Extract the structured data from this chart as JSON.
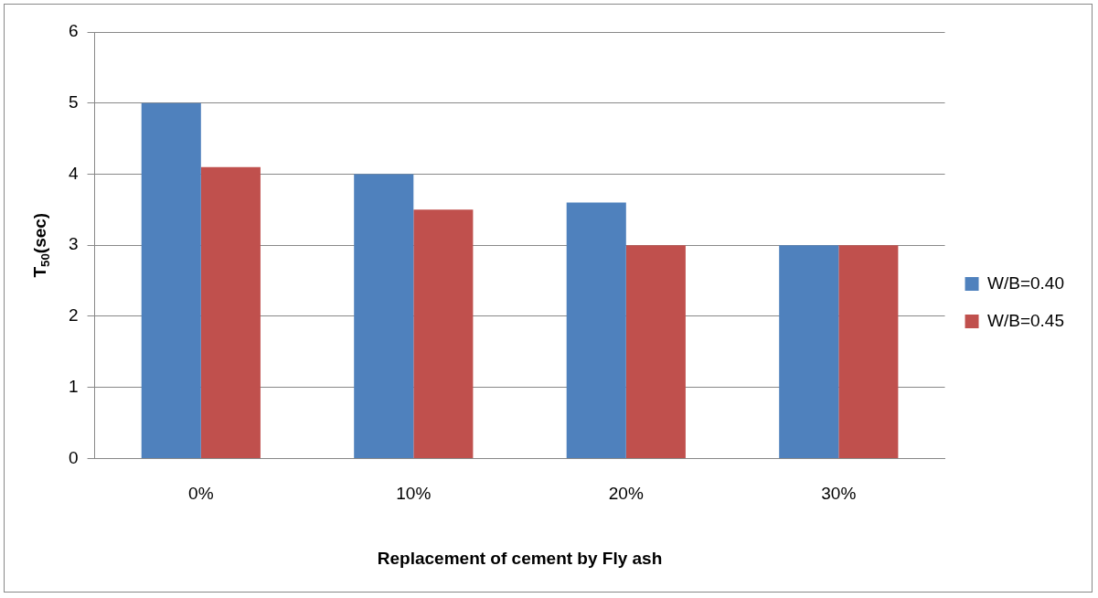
{
  "chart_data": {
    "type": "bar",
    "xlabel": "Replacement of cement by Fly ash",
    "ylabel": "T$_{50}$(sec)",
    "categories": [
      "0%",
      "10%",
      "20%",
      "30%"
    ],
    "series": [
      {
        "name": "W/B=0.40",
        "color": "#4f81bd",
        "values": [
          5,
          4,
          3.6,
          3
        ]
      },
      {
        "name": "W/B=0.45",
        "color": "#c0504d",
        "values": [
          4.1,
          3.5,
          3,
          3
        ]
      }
    ],
    "ylim": [
      0,
      6
    ],
    "yticks": [
      0,
      1,
      2,
      3,
      4,
      5,
      6
    ],
    "grid": "y",
    "legend": "right"
  }
}
